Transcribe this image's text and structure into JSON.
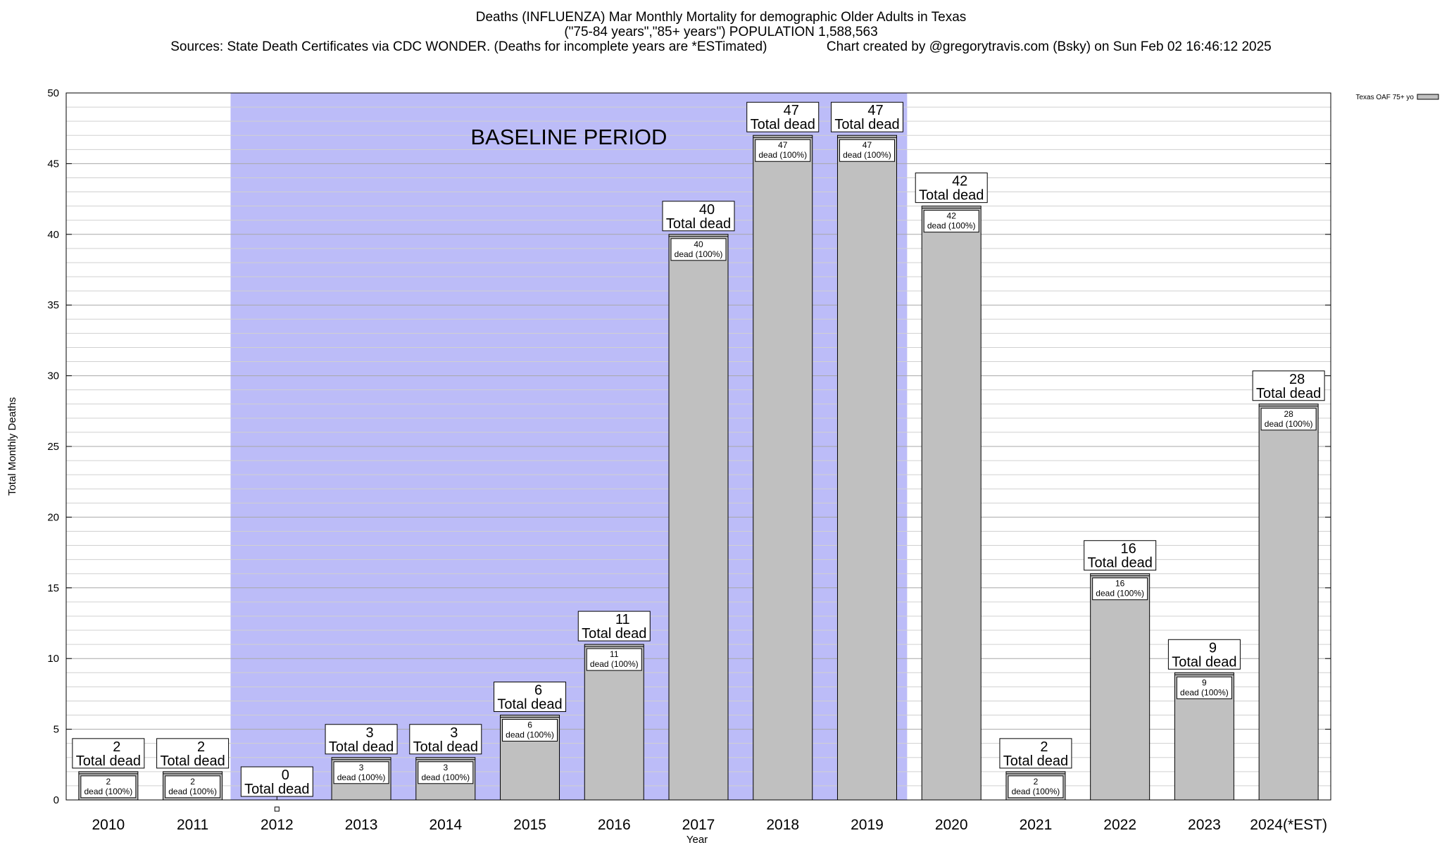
{
  "header": {
    "title": "Deaths (INFLUENZA) Mar Monthly Mortality for demographic Older Adults in Texas",
    "subtitle": "(\"75-84 years\",\"85+ years\") POPULATION 1,588,563",
    "sources": "Sources: State Death Certificates via CDC WONDER. (Deaths for incomplete years are *ESTimated)",
    "credit": "Chart created by @gregorytravis.com (Bsky) on Sun Feb 02 16:46:12 2025"
  },
  "chart_data": {
    "type": "bar",
    "xlabel": "Year",
    "ylabel": "Total Monthly Deaths",
    "ylim": [
      0,
      50
    ],
    "yticks": [
      0,
      5,
      10,
      15,
      20,
      25,
      30,
      35,
      40,
      45,
      50
    ],
    "categories": [
      "2010",
      "2011",
      "2012",
      "2013",
      "2014",
      "2015",
      "2016",
      "2017",
      "2018",
      "2019",
      "2020",
      "2021",
      "2022",
      "2023",
      "2024(*EST)"
    ],
    "values": [
      2,
      2,
      0,
      3,
      3,
      6,
      11,
      40,
      47,
      47,
      42,
      2,
      16,
      9,
      28
    ],
    "total_label_suffix": "Total dead",
    "inner_label_suffix": "dead (100%)",
    "legend": {
      "entry": "Texas OAF 75+ yo",
      "position": "top-right, outside plot"
    },
    "baseline": {
      "label": "BASELINE PERIOD",
      "from": "2012",
      "to": "2019",
      "color": "#bcbcf8"
    },
    "bar_color": "#c0c0c0",
    "grid": true
  }
}
